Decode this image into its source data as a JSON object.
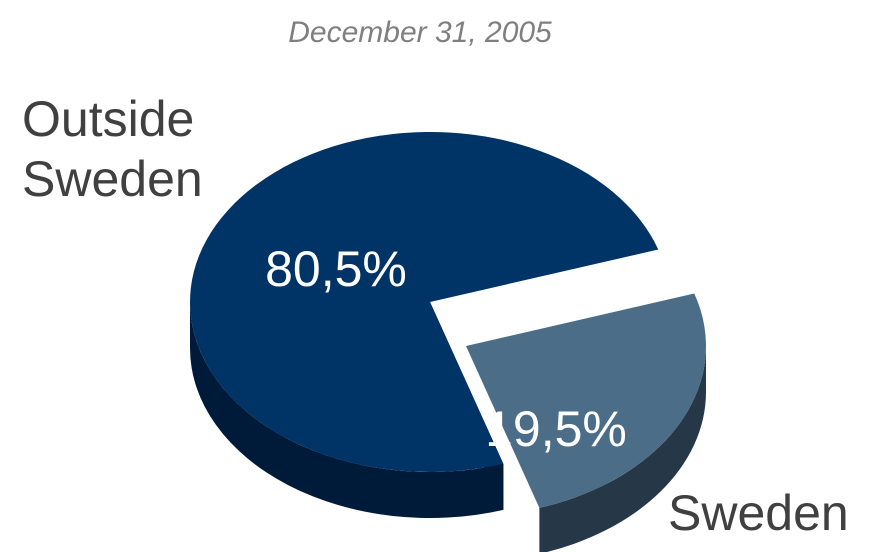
{
  "chart_data": {
    "type": "pie",
    "title": "",
    "subtitle": "December 31, 2005",
    "slices": [
      {
        "label": "Outside Sweden",
        "value": 80.5,
        "display": "80,5%",
        "color": "#003366",
        "side_color": "#001a3a",
        "exploded": false
      },
      {
        "label": "Sweden",
        "value": 19.5,
        "display": "19,5%",
        "color": "#4b6d88",
        "side_color": "#263847",
        "exploded": true
      }
    ],
    "legend": "none",
    "style": "3d-exploded"
  }
}
